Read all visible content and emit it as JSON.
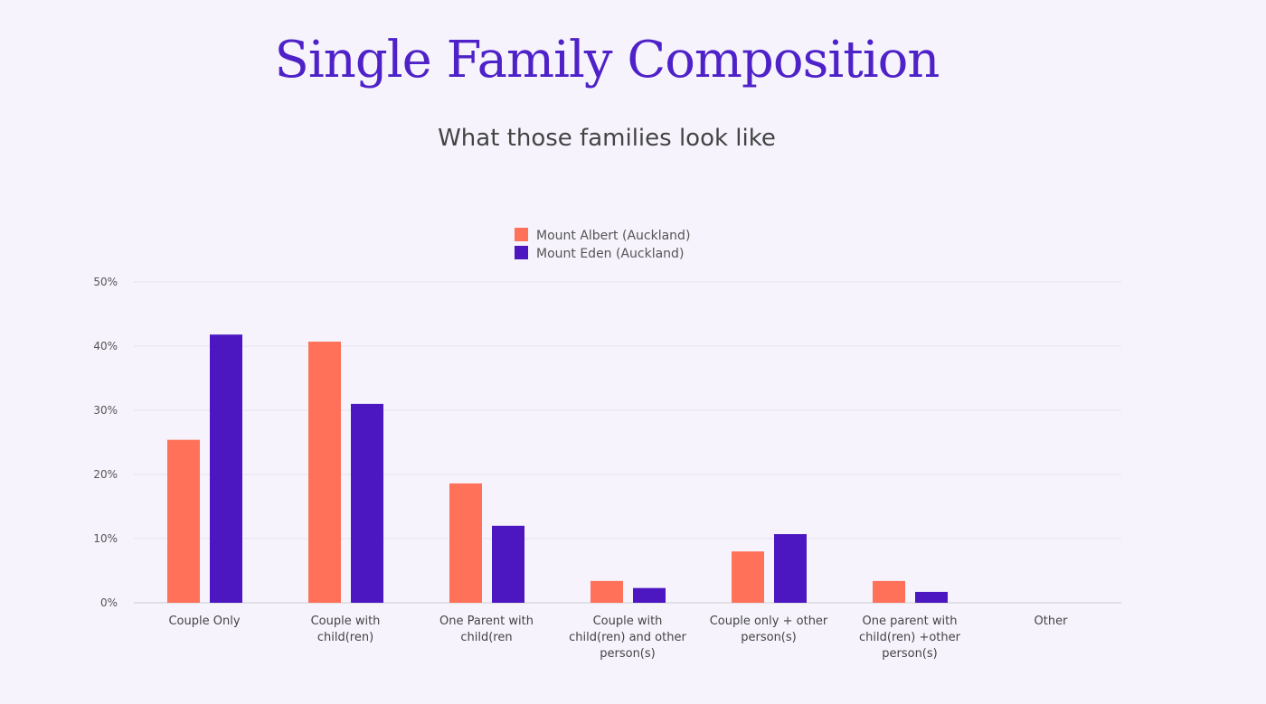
{
  "title": "Single Family Composition",
  "subtitle": "What those families look like",
  "chart_data": {
    "type": "bar",
    "categories": [
      [
        "Couple Only"
      ],
      [
        "Couple with",
        "child(ren)"
      ],
      [
        "One Parent with",
        "child(ren"
      ],
      [
        "Couple with",
        "child(ren) and other",
        "person(s)"
      ],
      [
        "Couple only + other",
        "person(s)"
      ],
      [
        "One parent with",
        "child(ren) +other",
        "person(s)"
      ],
      [
        "Other"
      ]
    ],
    "series": [
      {
        "name": "Mount Albert (Auckland)",
        "color": "#ff7158",
        "values": [
          25.4,
          40.7,
          18.6,
          3.4,
          8.0,
          3.4,
          0
        ]
      },
      {
        "name": "Mount Eden (Auckland)",
        "color": "#4c17c0",
        "values": [
          41.8,
          31.0,
          12.0,
          2.3,
          10.7,
          1.7,
          0
        ]
      }
    ],
    "yticks": [
      "0%",
      "10%",
      "20%",
      "30%",
      "40%",
      "50%"
    ],
    "ylim": [
      0,
      50
    ],
    "grid": true,
    "legend": "top-center"
  }
}
